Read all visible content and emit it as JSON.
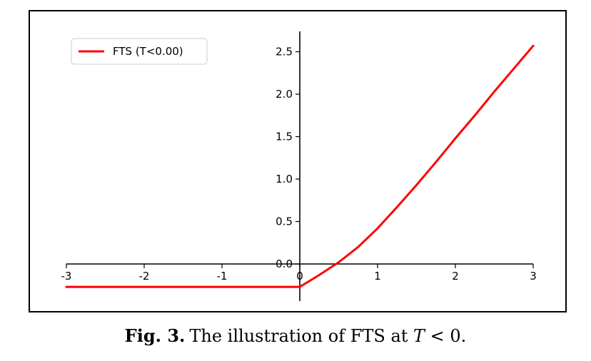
{
  "chart_data": {
    "type": "line",
    "title": "",
    "xlabel": "",
    "ylabel": "",
    "xlim": [
      -3,
      3
    ],
    "ylim": [
      -0.3,
      2.7
    ],
    "x_ticks": [
      "-3",
      "-2",
      "-1",
      "0",
      "1",
      "2",
      "3"
    ],
    "y_ticks": [
      "0.0",
      "0.5",
      "1.0",
      "1.5",
      "2.0",
      "2.5"
    ],
    "grid": false,
    "legend_position": "top-left",
    "series": [
      {
        "name": "FTS (T<0.00)",
        "color": "#ff0000",
        "x": [
          -3,
          -2,
          -1,
          0,
          0.25,
          0.5,
          0.75,
          1,
          1.25,
          1.5,
          1.75,
          2,
          2.25,
          2.5,
          2.75,
          3
        ],
        "y": [
          -0.27,
          -0.27,
          -0.27,
          -0.27,
          -0.13,
          0.02,
          0.2,
          0.42,
          0.67,
          0.93,
          1.2,
          1.48,
          1.75,
          2.03,
          2.3,
          2.57
        ]
      }
    ]
  },
  "caption": {
    "fig_label": "Fig. 3.",
    "text_before": "The illustration of FTS at ",
    "t_symbol": "T",
    "text_after": " < 0."
  }
}
